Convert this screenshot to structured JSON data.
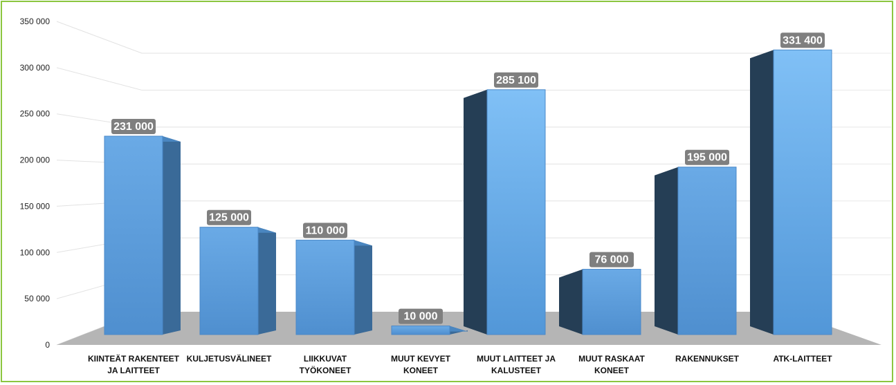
{
  "chart_data": {
    "type": "bar",
    "title": "",
    "xlabel": "",
    "ylabel": "",
    "ylim": [
      0,
      350000
    ],
    "y_ticks": [
      "0",
      "50 000",
      "100 000",
      "150 000",
      "200 000",
      "250 000",
      "300 000",
      "350 000"
    ],
    "categories": [
      [
        "KIINTEÄT RAKENTEET",
        "JA LAITTEET"
      ],
      [
        "KULJETUSVÄLINEET"
      ],
      [
        "LIIKKUVAT",
        "TYÖKONEET"
      ],
      [
        "MUUT KEVYET",
        "KONEET"
      ],
      [
        "MUUT LAITTEET JA",
        "KALUSTEET"
      ],
      [
        "MUUT RASKAAT",
        "KONEET"
      ],
      [
        "RAKENNUKSET"
      ],
      [
        "ATK-LAITTEET"
      ]
    ],
    "values": [
      231000,
      125000,
      110000,
      10000,
      285100,
      76000,
      195000,
      331400
    ],
    "data_labels": [
      "231 000",
      "125 000",
      "110 000",
      "10 000",
      "285 100",
      "76 000",
      "195 000",
      "331 400"
    ],
    "grid": true,
    "style": "3d-column",
    "colors": {
      "bar_front": "#5b9bd5",
      "bar_front_light": "#7ab8ee",
      "side_right": "#3a6a98",
      "side_dark": "#253e55",
      "floor": "#b5b5b5",
      "label_box": "#7f7f7f",
      "frame": "#8cc63f"
    }
  }
}
